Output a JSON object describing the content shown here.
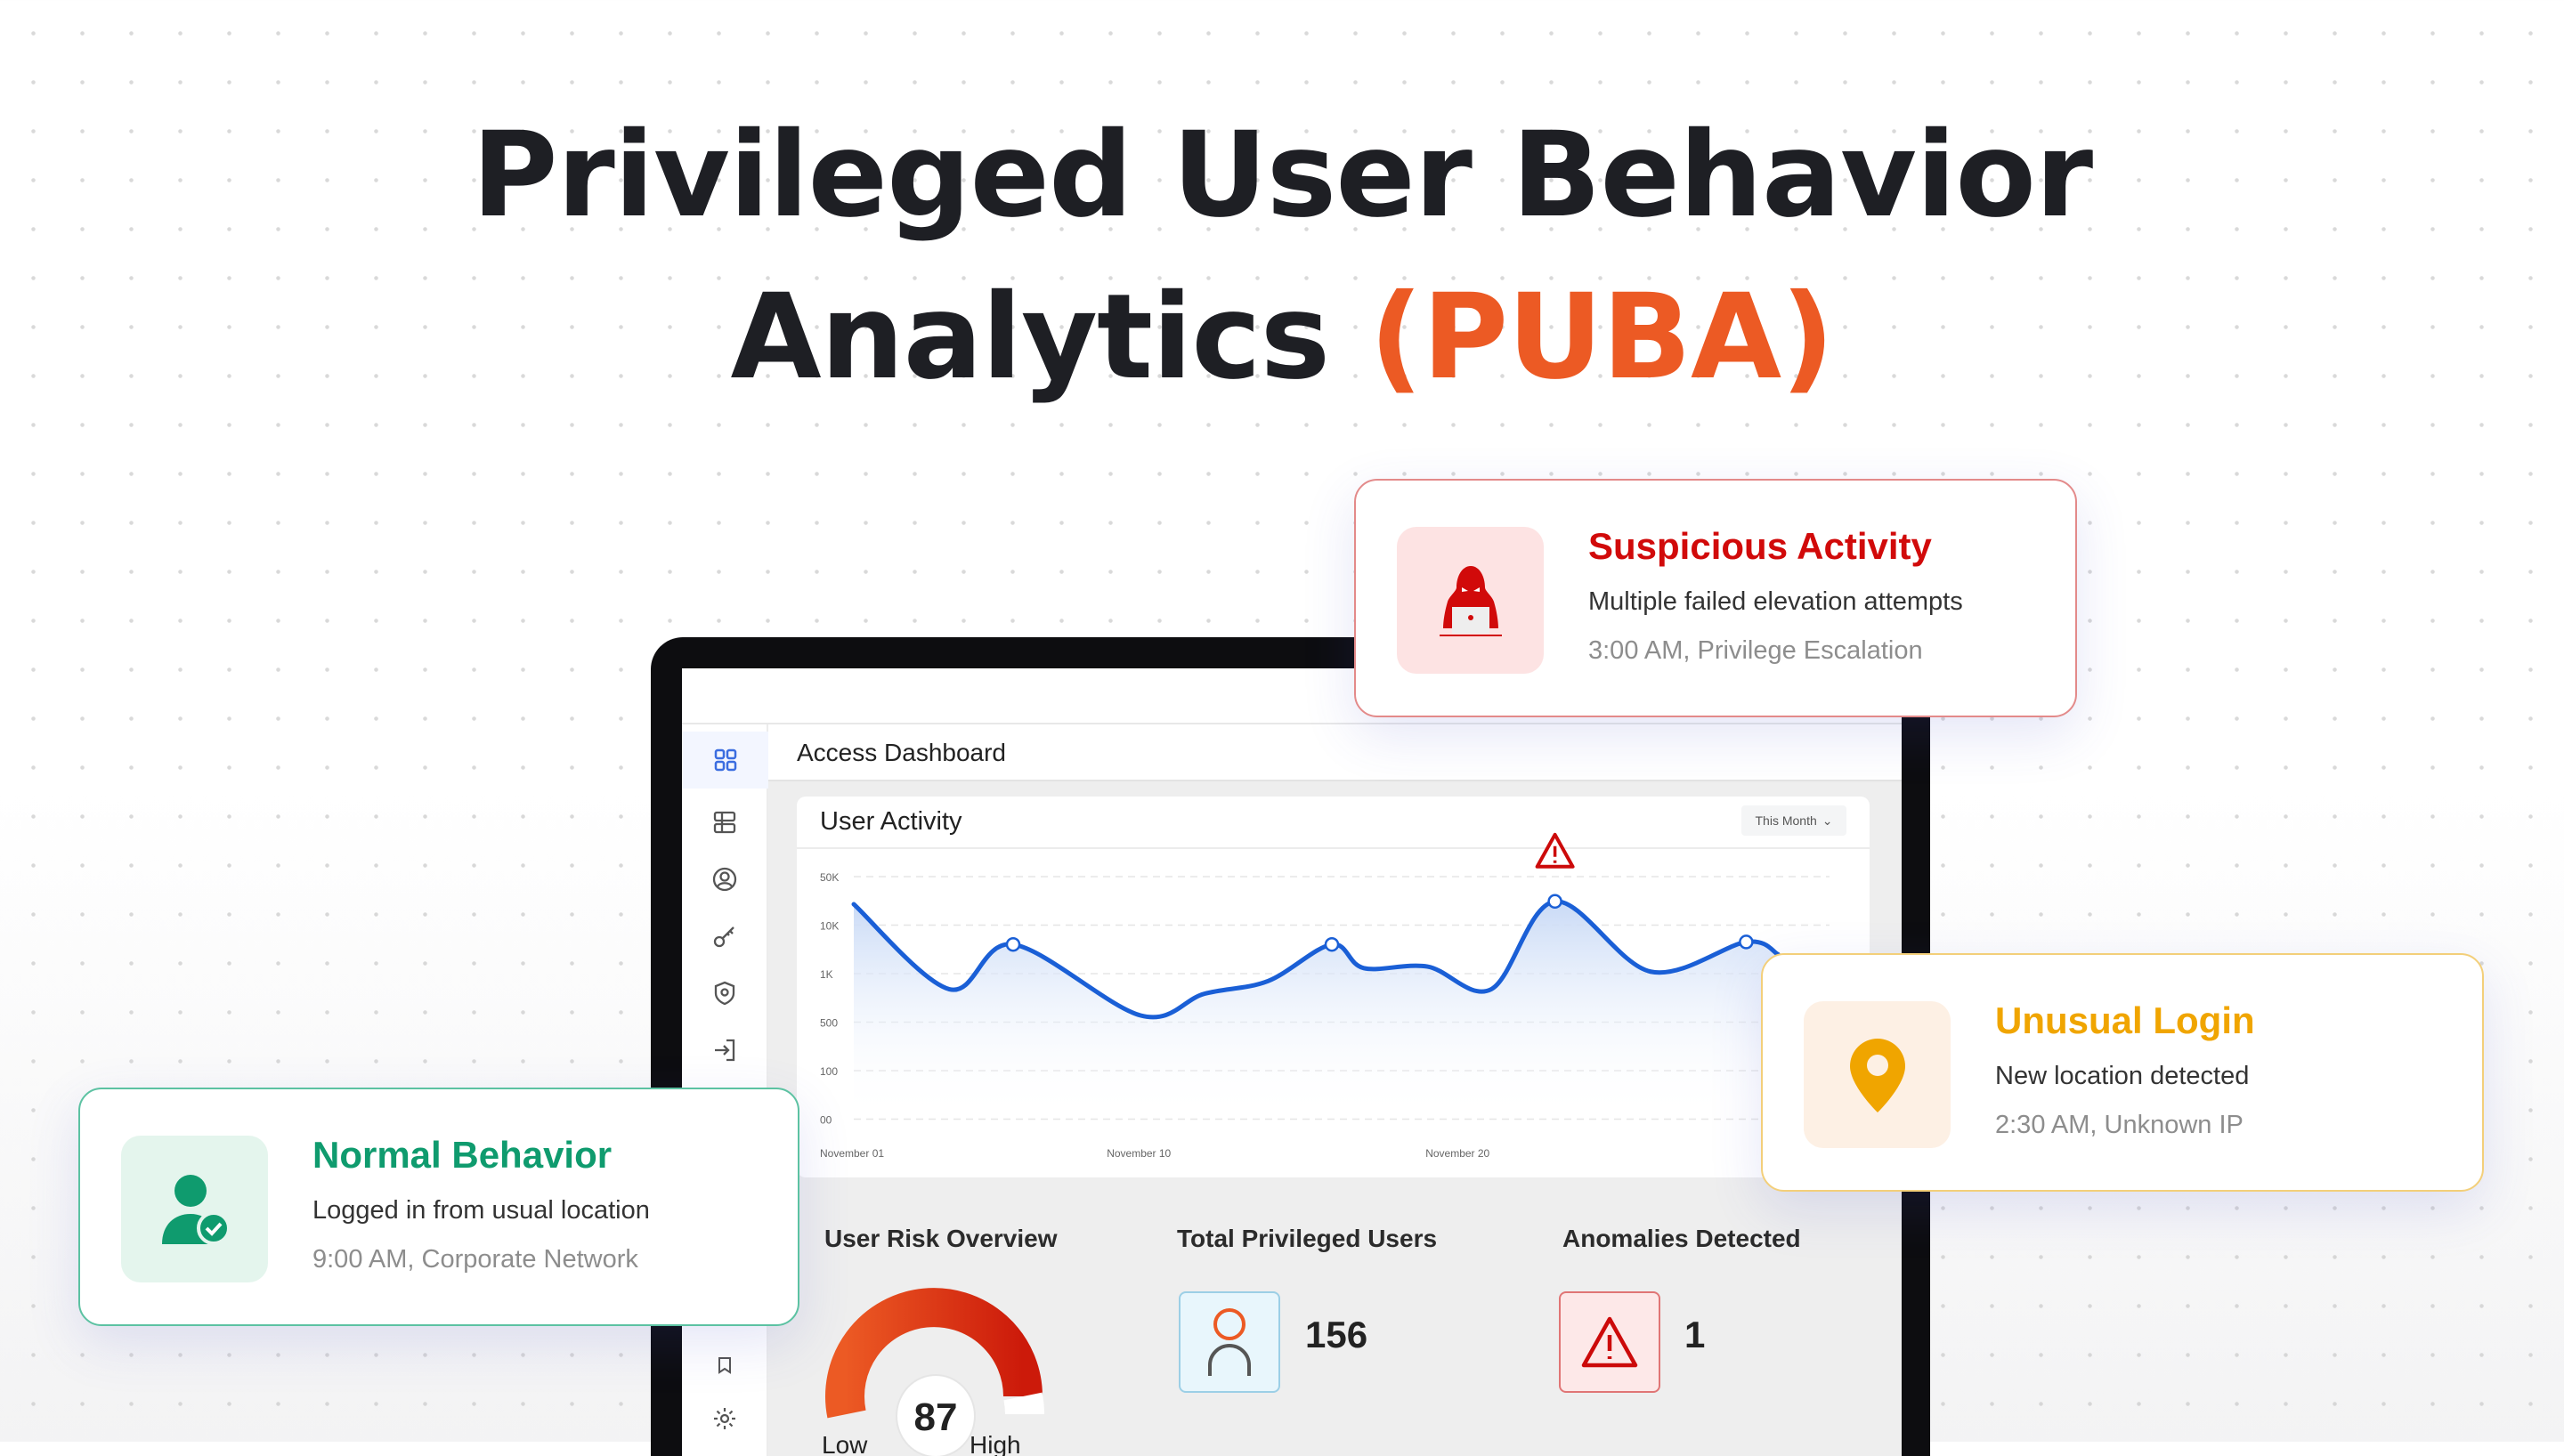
{
  "headline": {
    "line1": "Privileged User Behavior",
    "line2_main": "Analytics ",
    "line2_accent": "(PUBA)"
  },
  "colors": {
    "accent": "#ec5a24",
    "danger": "#d10a0a",
    "warning": "#f0a500",
    "success": "#0f9b6e",
    "line": "#1a5fd6"
  },
  "dashboard": {
    "title": "Access Dashboard",
    "sidebar_icons": [
      "grid-icon",
      "layout-icon",
      "user-circle-icon",
      "key-icon",
      "shield-icon",
      "login-icon",
      "bookmark-icon",
      "gear-icon"
    ],
    "activity": {
      "title": "User Activity",
      "range": "This Month"
    },
    "risk": {
      "title": "User Risk Overview",
      "score": "87",
      "low": "Low",
      "high": "High",
      "level": 0.87
    },
    "users": {
      "title": "Total Privileged Users",
      "count": "156",
      "icon": "user-icon"
    },
    "anomalies": {
      "title": "Anomalies Detected",
      "count": "1",
      "icon": "warning-icon"
    }
  },
  "chart_data": {
    "type": "area",
    "ytick_labels": [
      "50K",
      "10K",
      "1K",
      "500",
      "100",
      "00"
    ],
    "ytick_values": [
      50000,
      10000,
      1000,
      500,
      100,
      0
    ],
    "xtick_labels": [
      "November 01",
      "November 10",
      "November 20"
    ],
    "xtick_days": [
      1,
      10,
      20
    ],
    "x_days": [
      1,
      4,
      6,
      10,
      12,
      14,
      16,
      17,
      19,
      21,
      23,
      26,
      29,
      30
    ],
    "values": [
      20000,
      800,
      4000,
      550,
      750,
      900,
      4000,
      1300,
      1400,
      800,
      22000,
      1100,
      4500,
      2500
    ],
    "markers": [
      2,
      6,
      10,
      12
    ],
    "alert_index": 10,
    "grid": true
  },
  "alerts": {
    "suspicious": {
      "title": "Suspicious Activity",
      "body": "Multiple failed elevation attempts",
      "meta": "3:00 AM, Privilege Escalation",
      "icon": "hacker-icon"
    },
    "unusual": {
      "title": "Unusual Login",
      "body": "New location detected",
      "meta": "2:30 AM, Unknown IP",
      "icon": "location-pin-icon"
    },
    "normal": {
      "title": "Normal Behavior",
      "body": "Logged in from usual location",
      "meta": "9:00 AM, Corporate Network",
      "icon": "user-check-icon"
    }
  }
}
